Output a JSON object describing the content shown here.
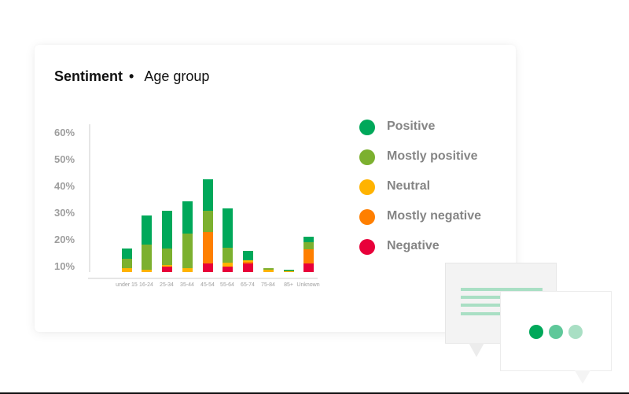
{
  "header": {
    "title": "Sentiment",
    "separator": "•",
    "subtitle": "Age group"
  },
  "colors": {
    "positive": "#00a85a",
    "mostly_positive": "#7cb02f",
    "neutral": "#ffb300",
    "mostly_negative": "#ff7f00",
    "negative": "#e8003a",
    "axis_text": "#9e9e9e",
    "legend_text": "#858585",
    "typing_dot_1": "#00a85a",
    "typing_dot_2": "#5fc89a",
    "typing_dot_3": "#a9dfc4"
  },
  "legend": [
    {
      "label": "Positive",
      "color": "#00a85a"
    },
    {
      "label": "Mostly positive",
      "color": "#7cb02f"
    },
    {
      "label": "Neutral",
      "color": "#ffb300"
    },
    {
      "label": "Mostly negative",
      "color": "#ff7f00"
    },
    {
      "label": "Negative",
      "color": "#e8003a"
    }
  ],
  "y_ticks": [
    "60%",
    "50%",
    "40%",
    "30%",
    "20%",
    "10%"
  ],
  "x_labels": [
    "under 15",
    "16-24",
    "25-34",
    "35-44",
    "45-54",
    "55-64",
    "65-74",
    "75-84",
    "85+",
    "Unknown"
  ],
  "chart_data": {
    "type": "bar",
    "stacked": true,
    "title": "Sentiment • Age group",
    "xlabel": "",
    "ylabel": "",
    "ylim": [
      8,
      62
    ],
    "y_ticks": [
      "10%",
      "20%",
      "30%",
      "40%",
      "50%",
      "60%"
    ],
    "grid": false,
    "legend_position": "right",
    "categories": [
      "under 15",
      "16-24",
      "25-34",
      "35-44",
      "45-54",
      "55-64",
      "65-74",
      "75-84",
      "85+",
      "Unknown"
    ],
    "series": [
      {
        "name": "Negative",
        "color": "#e8003a",
        "values": [
          0,
          0,
          2.0,
          0,
          3.2,
          2.0,
          3.2,
          0,
          0,
          3.2
        ]
      },
      {
        "name": "Mostly negative",
        "color": "#ff7f00",
        "values": [
          0,
          0,
          0,
          0,
          11.8,
          0,
          0.6,
          0,
          0,
          5.3
        ]
      },
      {
        "name": "Neutral",
        "color": "#ffb300",
        "values": [
          1.5,
          0.9,
          0.6,
          1.5,
          0,
          1.5,
          0.6,
          0.9,
          0.3,
          0
        ]
      },
      {
        "name": "Mostly positive",
        "color": "#7cb02f",
        "values": [
          3.5,
          9.4,
          6.2,
          12.9,
          7.9,
          5.6,
          0,
          0.6,
          0.3,
          2.6
        ]
      },
      {
        "name": "Positive",
        "color": "#00a85a",
        "values": [
          3.8,
          10.9,
          14.1,
          12.1,
          11.8,
          14.7,
          3.5,
          0,
          0.3,
          2.1
        ]
      }
    ],
    "totals_pct_approx": [
      17,
      29,
      31,
      34.5,
      42.5,
      32,
      16,
      9.5,
      9,
      21
    ]
  },
  "chat_bubbles": {
    "back_bubble_lines": 4,
    "front_bubble_typing_dots": 3
  }
}
